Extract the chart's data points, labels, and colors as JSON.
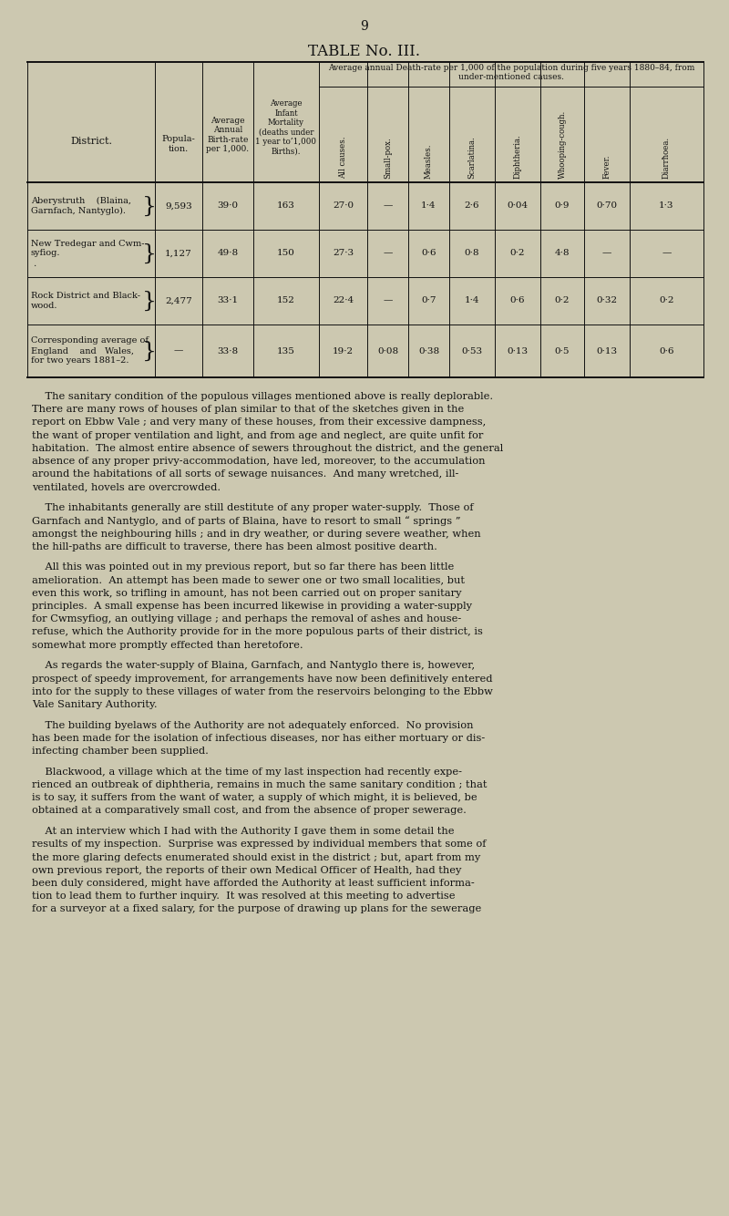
{
  "title": "TABLE No. III.",
  "page_number": "9",
  "bg_color": "#ccc8b0",
  "text_color": "#111111",
  "span_header": "Average annual Death-rate per 1,000 of the population during five years 1880–84, from under-mentioned causes.",
  "col_headers_normal": [
    "District.",
    "Popula-\ntion.",
    "Average\nAnnual\nBirth-rate\nper 1,000.",
    "Average\nInfant\nMortality\n(deaths under\n1 year to’1,000\nBirths)."
  ],
  "col_headers_rotated": [
    "All causes.",
    "Small-pox.",
    "Measles.",
    "Scarlatina.",
    "Diphtheria.",
    "Whooping-cough.",
    "Fever.",
    "Diarrħoea."
  ],
  "rows": [
    {
      "district_lines": [
        "Aberystruth    (Blaina,",
        "Garnfach, Nantyglo)."
      ],
      "has_brace": true,
      "values": [
        "9,593",
        "39·0",
        "163",
        "27·0",
        "—",
        "1·4",
        "2·6",
        "0·04",
        "0·9",
        "0·70",
        "1·3"
      ]
    },
    {
      "district_lines": [
        "New Tredegar and Cwm-",
        "syfiog.",
        " ."
      ],
      "has_brace": true,
      "values": [
        "1,127",
        "49·8",
        "150",
        "27·3",
        "—",
        "0·6",
        "0·8",
        "0·2",
        "4·8",
        "—",
        "—"
      ]
    },
    {
      "district_lines": [
        "Rock District and Black-",
        "wood."
      ],
      "has_brace": true,
      "values": [
        "2,477",
        "33·1",
        "152",
        "22·4",
        "—",
        "0·7",
        "1·4",
        "0·6",
        "0·2",
        "0·32",
        "0·2"
      ]
    },
    {
      "district_lines": [
        "Corresponding average of",
        "England    and   Wales,",
        "for two years 1881–2."
      ],
      "has_brace": true,
      "values": [
        "—",
        "33·8",
        "135",
        "19·2",
        "0·08",
        "0·38",
        "0·53",
        "0·13",
        "0·5",
        "0·13",
        "0·6"
      ]
    }
  ],
  "body_paragraphs": [
    [
      "    The sanitary condition of the populous villages mentioned above is really deplorable.",
      "There are many rows of houses of plan similar to that of the sketches given in the",
      "report on Ebbw Vale ; and very many of these houses, from their excessive dampness,",
      "the want of proper ventilation and light, and from age and neglect, are quite unfit for",
      "habitation.  The almost entire absence of sewers throughout the district, and the general",
      "absence of any proper privy-accommodation, have led, moreover, to the accumulation",
      "around the habitations of all sorts of sewage nuisances.  And many wretched, ill-",
      "ventilated, hovels are overcrowded."
    ],
    [
      "    The inhabitants generally are still destitute of any proper water-supply.  Those of",
      "Garnfach and Nantyglo, and of parts of Blaina, have to resort to small “ springs ”",
      "amongst the neighbouring hills ; and in dry weather, or during severe weather, when",
      "the hill-paths are difficult to traverse, there has been almost positive dearth."
    ],
    [
      "    All this was pointed out in my previous report, but so far there has been little",
      "amelioration.  An attempt has been made to sewer one or two small localities, but",
      "even this work, so trifling in amount, has not been carried out on proper sanitary",
      "principles.  A small expense has been incurred likewise in providing a water-supply",
      "for Cwmsyfiog, an outlying village ; and perhaps the removal of ashes and house-",
      "refuse, which the Authority provide for in the more populous parts of their district, is",
      "somewhat more promptly effected than heretofore."
    ],
    [
      "    As regards the water-supply of Blaina, Garnfach, and Nantyglo there is, however,",
      "prospect of speedy improvement, for arrangements have now been definitively entered",
      "into for the supply to these villages of water from the reservoirs belonging to the Ebbw",
      "Vale Sanitary Authority."
    ],
    [
      "    The building byelaws of the Authority are not adequately enforced.  No provision",
      "has been made for the isolation of infectious diseases, nor has either mortuary or dis-",
      "infecting chamber been supplied."
    ],
    [
      "    Blackwood, a village which at the time of my last inspection had recently expe-",
      "rienced an outbreak of diphtheria, remains in much the same sanitary condition ; that",
      "is to say, it suffers from the want of water, a supply of which might, it is believed, be",
      "obtained at a comparatively small cost, and from the absence of proper sewerage."
    ],
    [
      "    At an interview which I had with the Authority I gave them in some detail the",
      "results of my inspection.  Surprise was expressed by individual members that some of",
      "the more glaring defects enumerated should exist in the district ; but, apart from my",
      "own previous report, the reports of their own Medical Officer of Health, had they",
      "been duly considered, might have afforded the Authority at least sufficient informa-",
      "tion to lead them to further inquiry.  It was resolved at this meeting to advertise",
      "for a surveyor at a fixed salary, for the purpose of drawing up plans for the sewerage"
    ]
  ]
}
